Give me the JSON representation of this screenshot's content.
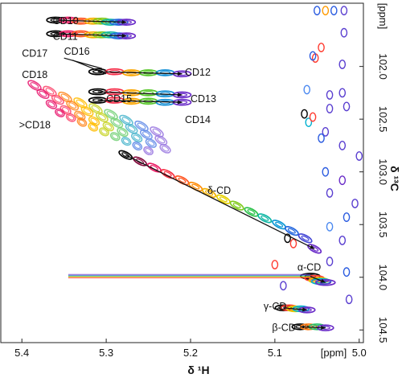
{
  "chart_data": {
    "type": "scatter",
    "xlabel": "δ ¹H",
    "ylabel": "δ ¹³C",
    "x_unit": "[ppm]",
    "y_unit": "[ppm]",
    "xlim": [
      5.425,
      4.995
    ],
    "ylim": [
      101.4,
      104.62
    ],
    "x_ticks": [
      "5.4",
      "5.3",
      "5.2",
      "5.1",
      "5.0"
    ],
    "x_tick_values": [
      5.4,
      5.3,
      5.2,
      5.1,
      5.0
    ],
    "y_ticks": [
      "102.0",
      "102.5",
      "103.0",
      "103.5",
      "104.0",
      "104.5"
    ],
    "y_tick_values": [
      102.0,
      102.5,
      103.0,
      103.5,
      104.0,
      104.5
    ],
    "grid": false,
    "colors": {
      "series_gradient": [
        "#000000",
        "#e8186e",
        "#ff3b30",
        "#ff9a00",
        "#e6d000",
        "#35c535",
        "#00b0d0",
        "#2a5be0",
        "#6a2cc8"
      ],
      "diagonal_cluster": [
        "#e8186e",
        "#ff4a6a",
        "#ff9a00",
        "#ffd000",
        "#8ed848",
        "#45c2c2",
        "#5a8ee8",
        "#9a78e0"
      ]
    },
    "labels": [
      {
        "text": "CD10",
        "x": 5.3633,
        "y": 101.56
      },
      {
        "text": "CD11",
        "x": 5.3633,
        "y": 101.71
      },
      {
        "text": "CD17",
        "x": 5.4,
        "y": 101.87
      },
      {
        "text": "CD16",
        "x": 5.35,
        "y": 101.85
      },
      {
        "text": "CD18",
        "x": 5.4,
        "y": 102.07
      },
      {
        "text": "CD12",
        "x": 5.2067,
        "y": 102.05
      },
      {
        "text": "CD15",
        "x": 5.3,
        "y": 102.3
      },
      {
        "text": "CD13",
        "x": 5.2,
        "y": 102.3
      },
      {
        "text": "CD14",
        "x": 5.2067,
        "y": 102.5
      },
      {
        "text": ">CD18",
        "x": 5.4033,
        "y": 102.55
      },
      {
        "text": "δ-CD",
        "x": 5.18,
        "y": 103.17
      },
      {
        "text": "α-CD",
        "x": 5.0733,
        "y": 103.9
      },
      {
        "text": "γ-CD",
        "x": 5.1133,
        "y": 104.27
      },
      {
        "text": "β-CD",
        "x": 5.1033,
        "y": 104.47
      }
    ],
    "series": [
      {
        "name": "CD10",
        "x": [
          5.36,
          5.345,
          5.33,
          5.315,
          5.305,
          5.295,
          5.285,
          5.276
        ],
        "y": [
          101.56,
          101.56,
          101.57,
          101.57,
          101.57,
          101.58,
          101.58,
          101.58
        ]
      },
      {
        "name": "CD11",
        "x": [
          5.36,
          5.345,
          5.33,
          5.315,
          5.305,
          5.295,
          5.285,
          5.276
        ],
        "y": [
          101.69,
          101.69,
          101.69,
          101.7,
          101.7,
          101.7,
          101.71,
          101.71
        ]
      },
      {
        "name": "CD12",
        "x": [
          5.31,
          5.29,
          5.27,
          5.25,
          5.23,
          5.21
        ],
        "y": [
          102.05,
          102.05,
          102.06,
          102.06,
          102.06,
          102.07
        ]
      },
      {
        "name": "CD13",
        "x": [
          5.31,
          5.29,
          5.27,
          5.25,
          5.23,
          5.21
        ],
        "y": [
          102.24,
          102.24,
          102.25,
          102.25,
          102.26,
          102.27
        ]
      },
      {
        "name": "CD14",
        "x": [
          5.31,
          5.29,
          5.27,
          5.25,
          5.23,
          5.21
        ],
        "y": [
          102.32,
          102.32,
          102.33,
          102.33,
          102.34,
          102.34
        ]
      },
      {
        "name": "δ-CD",
        "x": [
          5.277,
          5.26,
          5.243,
          5.227,
          5.21,
          5.194,
          5.178,
          5.161,
          5.145,
          5.128,
          5.112,
          5.095,
          5.08,
          5.064,
          5.053
        ],
        "y": [
          102.84,
          102.9,
          102.96,
          103.02,
          103.08,
          103.14,
          103.2,
          103.26,
          103.32,
          103.38,
          103.44,
          103.5,
          103.56,
          103.63,
          103.73
        ]
      },
      {
        "name": "α-CD",
        "x": [
          5.058,
          5.053,
          5.048,
          5.045,
          5.04
        ],
        "y": [
          103.99,
          104.01,
          104.03,
          104.04,
          104.05
        ]
      },
      {
        "name": "γ-CD",
        "x": [
          5.09,
          5.083,
          5.076,
          5.069,
          5.062
        ],
        "y": [
          104.29,
          104.29,
          104.3,
          104.3,
          104.31
        ]
      },
      {
        "name": "β-CD",
        "x": [
          5.07,
          5.06,
          5.05,
          5.04
        ],
        "y": [
          104.47,
          104.47,
          104.47,
          104.48
        ]
      }
    ],
    "scattered_peaks": [
      {
        "x": 5.018,
        "y": 101.47,
        "color": "#5a3fd0"
      },
      {
        "x": 5.03,
        "y": 101.47,
        "color": "#2a5be0"
      },
      {
        "x": 5.04,
        "y": 101.47,
        "color": "#ff9a00"
      },
      {
        "x": 5.05,
        "y": 101.47,
        "color": "#2a5be0"
      },
      {
        "x": 5.018,
        "y": 101.68,
        "color": "#5a3fd0"
      },
      {
        "x": 5.045,
        "y": 101.82,
        "color": "#ff3b30"
      },
      {
        "x": 5.052,
        "y": 101.92,
        "color": "#ff3b30"
      },
      {
        "x": 5.02,
        "y": 101.98,
        "color": "#5a3fd0"
      },
      {
        "x": 5.055,
        "y": 101.9,
        "color": "#2a5be0"
      },
      {
        "x": 5.035,
        "y": 102.27,
        "color": "#5a3fd0"
      },
      {
        "x": 5.02,
        "y": 102.25,
        "color": "#5a3fd0"
      },
      {
        "x": 5.062,
        "y": 102.22,
        "color": "#4a88f0"
      },
      {
        "x": 5.015,
        "y": 102.38,
        "color": "#5a3fd0"
      },
      {
        "x": 5.035,
        "y": 102.4,
        "color": "#5a3fd0"
      },
      {
        "x": 5.06,
        "y": 102.53,
        "color": "#00b0d0"
      },
      {
        "x": 5.055,
        "y": 102.48,
        "color": "#ff3b30"
      },
      {
        "x": 5.065,
        "y": 102.45,
        "color": "#000000"
      },
      {
        "x": 5.04,
        "y": 102.62,
        "color": "#5a3fd0"
      },
      {
        "x": 5.045,
        "y": 102.68,
        "color": "#2a5be0"
      },
      {
        "x": 5.02,
        "y": 102.75,
        "color": "#5a3fd0"
      },
      {
        "x": 5.0,
        "y": 102.85,
        "color": "#5a3fd0"
      },
      {
        "x": 5.04,
        "y": 103.0,
        "color": "#2a5be0"
      },
      {
        "x": 5.02,
        "y": 103.08,
        "color": "#6a2cc8"
      },
      {
        "x": 5.035,
        "y": 103.2,
        "color": "#5a3fd0"
      },
      {
        "x": 5.005,
        "y": 103.3,
        "color": "#5a3fd0"
      },
      {
        "x": 5.015,
        "y": 103.43,
        "color": "#2a5be0"
      },
      {
        "x": 5.035,
        "y": 103.52,
        "color": "#4a88f0"
      },
      {
        "x": 5.085,
        "y": 103.63,
        "color": "#000000"
      },
      {
        "x": 5.078,
        "y": 103.68,
        "color": "#ff3b30"
      },
      {
        "x": 5.02,
        "y": 103.65,
        "color": "#5a3fd0"
      },
      {
        "x": 5.1,
        "y": 103.88,
        "color": "#ff3b30"
      },
      {
        "x": 5.035,
        "y": 103.85,
        "color": "#5a3fd0"
      },
      {
        "x": 5.015,
        "y": 103.95,
        "color": "#2a5be0"
      },
      {
        "x": 5.09,
        "y": 104.08,
        "color": "#5a3fd0"
      },
      {
        "x": 5.012,
        "y": 104.21,
        "color": "#5a3fd0"
      }
    ]
  }
}
